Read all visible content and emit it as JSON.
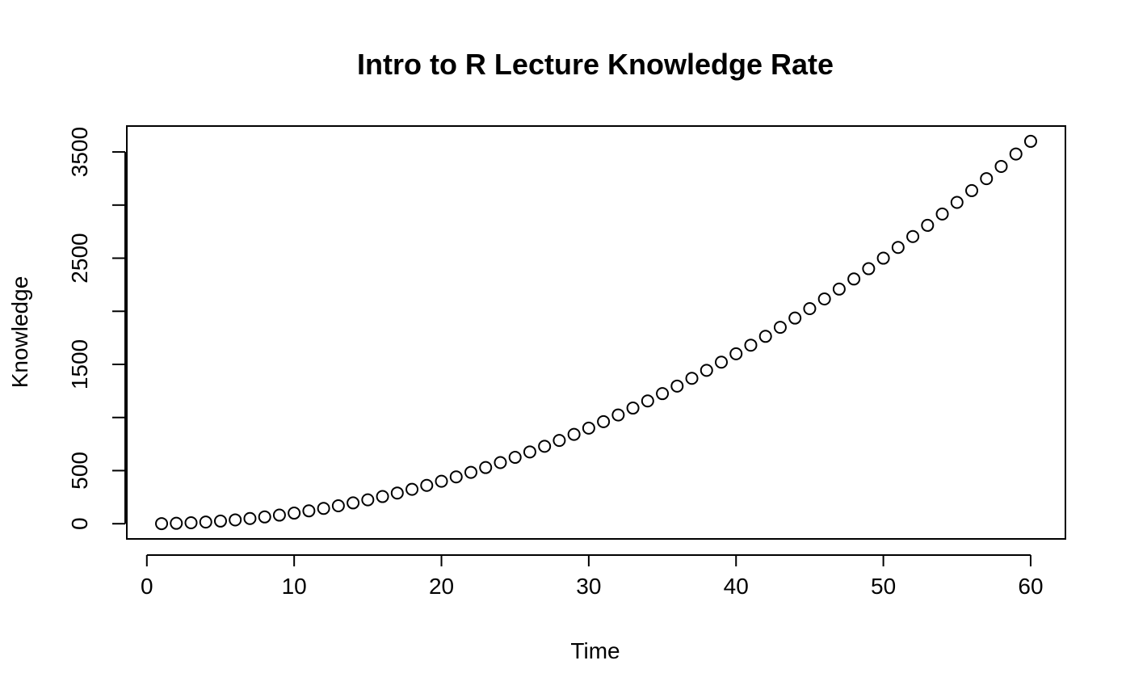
{
  "chart_data": {
    "type": "scatter",
    "title": "Intro to R Lecture Knowledge Rate",
    "xlabel": "Time",
    "ylabel": "Knowledge",
    "x": [
      1,
      2,
      3,
      4,
      5,
      6,
      7,
      8,
      9,
      10,
      11,
      12,
      13,
      14,
      15,
      16,
      17,
      18,
      19,
      20,
      21,
      22,
      23,
      24,
      25,
      26,
      27,
      28,
      29,
      30,
      31,
      32,
      33,
      34,
      35,
      36,
      37,
      38,
      39,
      40,
      41,
      42,
      43,
      44,
      45,
      46,
      47,
      48,
      49,
      50,
      51,
      52,
      53,
      54,
      55,
      56,
      57,
      58,
      59,
      60
    ],
    "y": [
      1,
      4,
      9,
      16,
      25,
      36,
      49,
      64,
      81,
      100,
      121,
      144,
      169,
      196,
      225,
      256,
      289,
      324,
      361,
      400,
      441,
      484,
      529,
      576,
      625,
      676,
      729,
      784,
      841,
      900,
      961,
      1024,
      1089,
      1156,
      1225,
      1296,
      1369,
      1444,
      1521,
      1600,
      1681,
      1764,
      1849,
      1936,
      2025,
      2116,
      2209,
      2304,
      2401,
      2500,
      2601,
      2704,
      2809,
      2916,
      3025,
      3136,
      3249,
      3364,
      3481,
      3600
    ],
    "xlim": [
      -1.36,
      62.36
    ],
    "ylim": [
      -143,
      3744
    ],
    "x_ticks": [
      0,
      10,
      20,
      30,
      40,
      50,
      60
    ],
    "x_tick_labels": [
      "0",
      "10",
      "20",
      "30",
      "40",
      "50",
      "60"
    ],
    "y_ticks": [
      0,
      500,
      1000,
      1500,
      2000,
      2500,
      3000,
      3500
    ],
    "y_tick_labels": [
      "0",
      "500",
      "",
      "1500",
      "",
      "2500",
      "",
      "3500"
    ],
    "grid": false,
    "marker": "open-circle"
  }
}
